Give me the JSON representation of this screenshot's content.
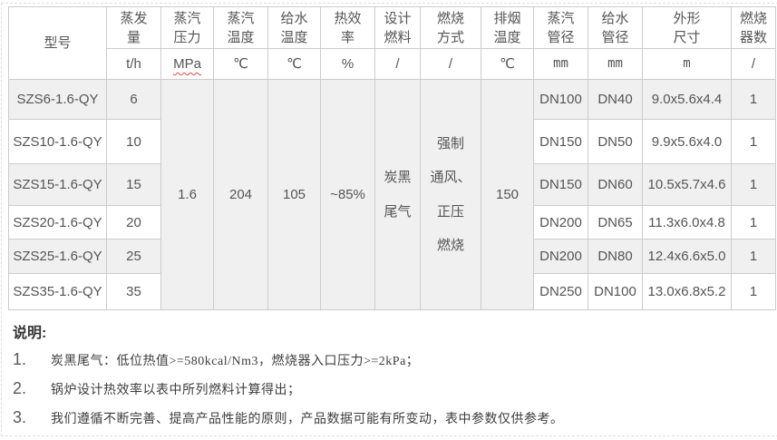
{
  "colors": {
    "row_alt_bg": "#f1f0f1",
    "table_border": "#cccccc",
    "frame_border": "#dedede",
    "table_text": "#555555",
    "note_text": "#3d3d3d",
    "spellcheck_wavy": "#e4473f"
  },
  "table": {
    "columns": [
      {
        "id": "model",
        "label": "型号",
        "unit": ""
      },
      {
        "id": "evaporation",
        "label": "蒸发\n量",
        "unit": "t/h"
      },
      {
        "id": "steam-pressure",
        "label": "蒸汽\n压力",
        "unit": "MPa"
      },
      {
        "id": "steam-temperature",
        "label": "蒸汽\n温度",
        "unit": "℃"
      },
      {
        "id": "feedwater-temperature",
        "label": "给水\n温度",
        "unit": "℃"
      },
      {
        "id": "thermal-efficiency",
        "label": "热效\n率",
        "unit": "%"
      },
      {
        "id": "design-fuel",
        "label": "设计\n燃料",
        "unit": "/"
      },
      {
        "id": "combustion-mode",
        "label": "燃烧\n方式",
        "unit": "/"
      },
      {
        "id": "exhaust-temperature",
        "label": "排烟\n温度",
        "unit": "℃"
      },
      {
        "id": "steam-pipe-dn",
        "label": "蒸汽\n管径",
        "unit": "mm"
      },
      {
        "id": "feedwater-pipe-dn",
        "label": "给水\n管径",
        "unit": "mm"
      },
      {
        "id": "dimensions",
        "label": "外形\n尺寸",
        "unit": "m"
      },
      {
        "id": "burner-count",
        "label": "燃烧\n器数",
        "unit": "/"
      }
    ],
    "merged": {
      "steam_pressure": "1.6",
      "steam_temperature": "204",
      "feedwater_temperature": "105",
      "thermal_efficiency": "~85%",
      "design_fuel": "炭黑\n尾气",
      "combustion_mode": "强制\n通风、\n正压\n燃烧",
      "exhaust_temperature": "150"
    },
    "rows": [
      {
        "model": "SZS6-1.6-QY",
        "evaporation": "6",
        "steam_pipe_dn": "DN100",
        "feedwater_pipe_dn": "DN40",
        "dimensions": "9.0x5.6x4.4",
        "burner_count": "1"
      },
      {
        "model": "SZS10-1.6-QY",
        "evaporation": "10",
        "steam_pipe_dn": "DN150",
        "feedwater_pipe_dn": "DN50",
        "dimensions": "9.9x5.6x4.0",
        "burner_count": "1"
      },
      {
        "model": "SZS15-1.6-QY",
        "evaporation": "15",
        "steam_pipe_dn": "DN150",
        "feedwater_pipe_dn": "DN60",
        "dimensions": "10.5x5.7x4.6",
        "burner_count": "1"
      },
      {
        "model": "SZS20-1.6-QY",
        "evaporation": "20",
        "steam_pipe_dn": "DN200",
        "feedwater_pipe_dn": "DN65",
        "dimensions": "11.3x6.0x4.8",
        "burner_count": "1"
      },
      {
        "model": "SZS25-1.6-QY",
        "evaporation": "25",
        "steam_pipe_dn": "DN200",
        "feedwater_pipe_dn": "DN80",
        "dimensions": "12.4x6.6x5.0",
        "burner_count": "1"
      },
      {
        "model": "SZS35-1.6-QY",
        "evaporation": "35",
        "steam_pipe_dn": "DN250",
        "feedwater_pipe_dn": "DN100",
        "dimensions": "13.0x6.8x5.2",
        "burner_count": "1"
      }
    ]
  },
  "notes": {
    "title": "说明:",
    "items": [
      {
        "num": "1.",
        "text": "炭黑尾气：低位热值>=580kcal/Nm3，燃烧器入口压力>=2kPa；"
      },
      {
        "num": "2.",
        "text": "锅炉设计热效率以表中所列燃料计算得出；"
      },
      {
        "num": "3.",
        "text": "我们遵循不断完善、提高产品性能的原则，产品数据可能有所变动，表中参数仅供参考。"
      }
    ]
  }
}
